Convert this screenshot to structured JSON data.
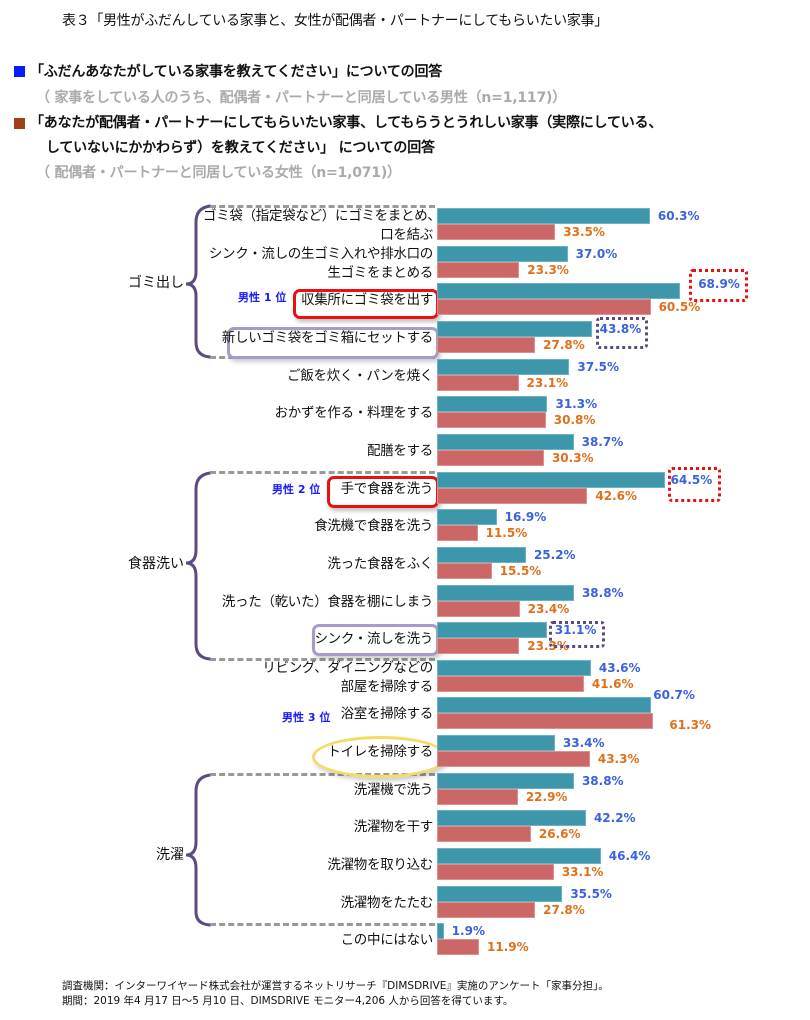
{
  "title": "表３「男性がふだんしている家事と、女性が配偶者・パートナーにしてもらいたい家事」",
  "legend": [
    {
      "name": "男性",
      "color": "#0a1aff",
      "question": "「ふだんあなたがしている家事を教えてください」についての回答",
      "sample": "（ 家事をしている人のうち、配偶者・パートナーと同居している男性（n=1,117)）"
    },
    {
      "name": "女性",
      "color": "#a0401a",
      "question_line1": "「あなたが配偶者・パートナーにしてもらいたい家事、してもらうとうれしい家事（実際にしている、",
      "question_line2": "していないにかかわらず）を教えてください」 についての回答",
      "sample": "（ 配偶者・パートナーと同居している女性（n=1,071)）"
    }
  ],
  "groups": {
    "garbage": "ゴミ出し",
    "dishes": "食器洗い",
    "laundry": "洗濯"
  },
  "ranks": {
    "first": "男性 1 位",
    "second": "男性 2 位",
    "third": "男性 3 位"
  },
  "chart_data": {
    "type": "bar",
    "orientation": "horizontal",
    "title": "表３「男性がふだんしている家事と、女性が配偶者・パートナーにしてもらいたい家事」",
    "unit": "%",
    "categories": [
      [
        "ゴミ袋（指定袋など）にゴミをまとめ、",
        "口を結ぶ"
      ],
      [
        "シンク・流しの生ゴミ入れや排水口の",
        "生ゴミをまとめる"
      ],
      [
        "収集所にゴミ袋を出す"
      ],
      [
        "新しいゴミ袋をゴミ箱にセットする"
      ],
      [
        "ご飯を炊く・パンを焼く"
      ],
      [
        "おかずを作る・料理をする"
      ],
      [
        "配膳をする"
      ],
      [
        "手で食器を洗う"
      ],
      [
        "食洗機で食器を洗う"
      ],
      [
        "洗った食器をふく"
      ],
      [
        "洗った（乾いた）食器を棚にしまう"
      ],
      [
        "シンク・流しを洗う"
      ],
      [
        "リビング、ダイニングなどの",
        "部屋を掃除する"
      ],
      [
        "浴室を掃除する"
      ],
      [
        "トイレを掃除する"
      ],
      [
        "洗濯機で洗う"
      ],
      [
        "洗濯物を干す"
      ],
      [
        "洗濯物を取り込む"
      ],
      [
        "洗濯物をたたむ"
      ],
      [
        "この中にはない"
      ]
    ],
    "series": [
      {
        "name": "男性（ふだんしている家事）",
        "color": "#3e96ab",
        "label_color": "#3a62e0",
        "values": [
          60.3,
          37.0,
          68.9,
          43.8,
          37.5,
          31.3,
          38.7,
          64.5,
          16.9,
          25.2,
          38.8,
          31.1,
          43.6,
          60.7,
          33.4,
          38.8,
          42.2,
          46.4,
          35.5,
          1.9
        ],
        "labels": [
          "60.3%",
          "37.0%",
          "68.9%",
          "43.8%",
          "37.5%",
          "31.3%",
          "38.7%",
          "64.5%",
          "16.9%",
          "25.2%",
          "38.8%",
          "31.1%",
          "43.6%",
          "60.7%",
          "33.4%",
          "38.8%",
          "42.2%",
          "46.4%",
          "35.5%",
          "1.9%"
        ]
      },
      {
        "name": "女性（してもらいたい家事）",
        "color": "#cb6767",
        "label_color": "#e0701a",
        "values": [
          33.5,
          23.3,
          60.5,
          27.8,
          23.1,
          30.8,
          30.3,
          42.6,
          11.5,
          15.5,
          23.4,
          23.3,
          41.6,
          61.3,
          43.3,
          22.9,
          26.6,
          33.1,
          27.8,
          11.9
        ],
        "labels": [
          "33.5%",
          "23.3%",
          "60.5%",
          "27.8%",
          "23.1%",
          "30.8%",
          "30.3%",
          "42.6%",
          "11.5%",
          "15.5%",
          "23.4%",
          "23.3%",
          "41.6%",
          "61.3%",
          "43.3%",
          "22.9%",
          "26.6%",
          "33.1%",
          "27.8%",
          "11.9%"
        ]
      }
    ],
    "annotations": [
      {
        "category_index": 2,
        "text": "男性 1 位",
        "style": "red-box"
      },
      {
        "category_index": 7,
        "text": "男性 2 位",
        "style": "red-box"
      },
      {
        "category_index": 13,
        "text": "男性 3 位",
        "style": "none"
      },
      {
        "category_index": 3,
        "style": "purple-box"
      },
      {
        "category_index": 11,
        "style": "purple-box"
      },
      {
        "category_index": 14,
        "style": "yellow-ellipse"
      }
    ],
    "xlabel": "",
    "ylabel": "",
    "xlim": [
      0,
      70
    ],
    "grid": false,
    "legend_position": "top"
  },
  "footer": {
    "line1": "調査機関：インターワイヤード株式会社が運営するネットリサーチ『DIMSDRIVE』実施のアンケート「家事分担」。",
    "line2": "期間：2019 年4 月17 日～5 月10 日、DIMSDRIVE モニター4,206 人から回答を得ています。"
  }
}
